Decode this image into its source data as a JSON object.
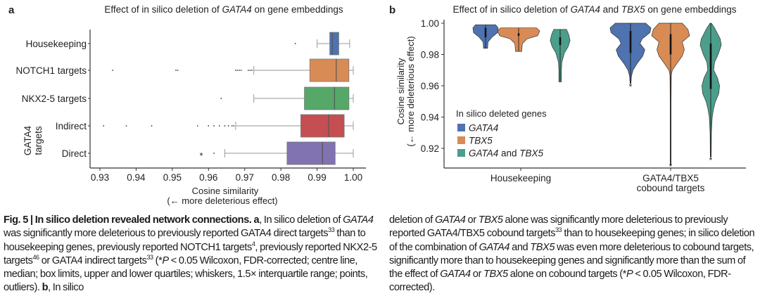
{
  "panel_a": {
    "letter": "a",
    "title_runs": [
      {
        "t": "Effect of in silico deletion of "
      },
      {
        "t": "GATA4",
        "i": true
      },
      {
        "t": " on gene embeddings"
      }
    ],
    "group_label": [
      "GATA4",
      "targets"
    ],
    "xlabel": [
      "Cosine similarity",
      "(← more deleterious effect)"
    ]
  },
  "panel_b": {
    "letter": "b",
    "title_runs": [
      {
        "t": "Effect of in silico deletion of "
      },
      {
        "t": "GATA4",
        "i": true
      },
      {
        "t": " and "
      },
      {
        "t": "TBX5",
        "i": true
      },
      {
        "t": " on gene embeddings"
      }
    ],
    "ylabel": [
      "Cosine similarity",
      "(← more deleterious effect)"
    ],
    "legend_title": "In silico deleted genes"
  },
  "chart_data": [
    {
      "type": "box",
      "orientation": "horizontal",
      "title": "Effect of in silico deletion of GATA4 on gene embeddings",
      "xlabel": "Cosine similarity (← more deleterious effect)",
      "xlim": [
        0.928,
        1.003
      ],
      "xticks": [
        "0.93",
        "0.94",
        "0.95",
        "0.96",
        "0.97",
        "0.98",
        "0.99",
        "1.00"
      ],
      "grid": false,
      "categories": [
        {
          "label": "Housekeeping",
          "color": "#4f72b0",
          "whisker_low": 0.99,
          "q1": 0.9935,
          "median": 0.9942,
          "q3": 0.996,
          "whisker_high": 0.999,
          "outliers": [
            0.984
          ],
          "significant": false
        },
        {
          "label": "NOTCH1 targets",
          "color": "#d98b55",
          "whisker_low": 0.9725,
          "q1": 0.988,
          "median": 0.9953,
          "q3": 0.9988,
          "whisker_high": 1.0,
          "outliers": [
            0.9335,
            0.951,
            0.9515,
            0.9675,
            0.968,
            0.9685,
            0.969,
            0.971,
            0.9715,
            0.972
          ],
          "significant": false
        },
        {
          "label": "NKX2-5 targets",
          "color": "#55a868",
          "whisker_low": 0.9725,
          "q1": 0.9865,
          "median": 0.9948,
          "q3": 0.9988,
          "whisker_high": 1.0,
          "outliers": [
            0.9635
          ],
          "significant": false
        },
        {
          "label": "Indirect",
          "color": "#c44e52",
          "whisker_low": 0.9675,
          "q1": 0.9855,
          "median": 0.9932,
          "q3": 0.9975,
          "whisker_high": 1.0,
          "outliers": [
            0.931,
            0.9373,
            0.9443,
            0.957,
            0.96,
            0.9615,
            0.963,
            0.9645,
            0.9655,
            0.9665,
            0.967
          ],
          "significant": false
        },
        {
          "label": "Direct",
          "color": "#8172b2",
          "whisker_low": 0.9645,
          "q1": 0.9817,
          "median": 0.9915,
          "q3": 0.995,
          "whisker_high": 1.0,
          "outliers": [
            0.9615
          ],
          "significant": true
        }
      ],
      "significance_marker": "*"
    },
    {
      "type": "violin",
      "title": "Effect of in silico deletion of GATA4 and TBX5 on gene embeddings",
      "ylabel": "Cosine similarity (← more deleterious effect)",
      "ylim": [
        0.9085,
        1.0
      ],
      "yticks": [
        "0.92",
        "0.94",
        "0.96",
        "0.98",
        "1.00"
      ],
      "grid": false,
      "legend": {
        "title": "In silico deleted genes",
        "position": "bottom-left",
        "entries": [
          {
            "runs": [
              {
                "t": "GATA4",
                "i": true
              }
            ],
            "color": "#4f72b0"
          },
          {
            "runs": [
              {
                "t": "TBX5",
                "i": true
              }
            ],
            "color": "#d98b55"
          },
          {
            "runs": [
              {
                "t": "GATA4",
                "i": true
              },
              {
                "t": " and "
              },
              {
                "t": "TBX5",
                "i": true
              }
            ],
            "color": "#4c9e8c"
          }
        ]
      },
      "categories": [
        [
          "Housekeeping"
        ],
        [
          "GATA4/TBX5",
          "cobound targets"
        ]
      ],
      "series": [
        {
          "group": 0,
          "color": "#4f72b0",
          "min": 0.984,
          "max": 0.999,
          "q1": 0.991,
          "q3": 0.997,
          "significant": false,
          "density": [
            [
              0.999,
              0.48
            ],
            [
              0.997,
              0.6
            ],
            [
              0.994,
              0.57
            ],
            [
              0.991,
              0.3
            ],
            [
              0.988,
              0.12
            ],
            [
              0.985,
              0.1
            ],
            [
              0.984,
              0.1
            ]
          ]
        },
        {
          "group": 0,
          "color": "#d98b55",
          "min": 0.982,
          "max": 0.997,
          "q1": 0.992,
          "q3": 0.9935,
          "significant": false,
          "density": [
            [
              0.997,
              0.85
            ],
            [
              0.995,
              1.0
            ],
            [
              0.992,
              0.9
            ],
            [
              0.99,
              0.4
            ],
            [
              0.987,
              0.18
            ],
            [
              0.983,
              0.15
            ],
            [
              0.982,
              0.15
            ]
          ]
        },
        {
          "group": 0,
          "color": "#4c9e8c",
          "min": 0.9625,
          "max": 0.996,
          "q1": 0.986,
          "q3": 0.991,
          "significant": false,
          "density": [
            [
              0.996,
              0.3
            ],
            [
              0.993,
              0.4
            ],
            [
              0.989,
              0.47
            ],
            [
              0.985,
              0.38
            ],
            [
              0.981,
              0.2
            ],
            [
              0.975,
              0.08
            ],
            [
              0.97,
              0.06
            ],
            [
              0.965,
              0.06
            ],
            [
              0.9625,
              0.06
            ]
          ]
        },
        {
          "group": 1,
          "color": "#4f72b0",
          "min": 0.9615,
          "max": 1.0,
          "q1": 0.981,
          "q3": 0.995,
          "significant": true,
          "density": [
            [
              1.0,
              0.72
            ],
            [
              0.997,
              0.97
            ],
            [
              0.994,
              0.92
            ],
            [
              0.99,
              0.55
            ],
            [
              0.987,
              0.45
            ],
            [
              0.983,
              0.68
            ],
            [
              0.979,
              0.58
            ],
            [
              0.974,
              0.3
            ],
            [
              0.97,
              0.12
            ],
            [
              0.966,
              0.04
            ],
            [
              0.9615,
              0.02
            ]
          ]
        },
        {
          "group": 1,
          "color": "#d98b55",
          "min": 0.9095,
          "max": 1.0,
          "q1": 0.98,
          "q3": 0.993,
          "significant": true,
          "density": [
            [
              1.0,
              0.55
            ],
            [
              0.996,
              0.82
            ],
            [
              0.992,
              0.9
            ],
            [
              0.988,
              0.55
            ],
            [
              0.983,
              0.65
            ],
            [
              0.979,
              0.55
            ],
            [
              0.974,
              0.28
            ],
            [
              0.97,
              0.08
            ],
            [
              0.967,
              0.03
            ],
            [
              0.95,
              0.02
            ],
            [
              0.9095,
              0.02
            ]
          ]
        },
        {
          "group": 1,
          "color": "#4c9e8c",
          "min": 0.9145,
          "max": 1.0,
          "q1": 0.958,
          "q3": 0.987,
          "significant": true,
          "density": [
            [
              1.0,
              0.03
            ],
            [
              0.997,
              0.18
            ],
            [
              0.99,
              0.45
            ],
            [
              0.986,
              0.5
            ],
            [
              0.98,
              0.35
            ],
            [
              0.975,
              0.18
            ],
            [
              0.97,
              0.14
            ],
            [
              0.965,
              0.32
            ],
            [
              0.96,
              0.42
            ],
            [
              0.955,
              0.38
            ],
            [
              0.95,
              0.22
            ],
            [
              0.945,
              0.13
            ],
            [
              0.94,
              0.07
            ],
            [
              0.93,
              0.03
            ],
            [
              0.9145,
              0.02
            ]
          ]
        }
      ],
      "significance_marker": "*"
    }
  ],
  "caption": {
    "left": [
      {
        "t": "Fig. 5 | In silico deletion revealed network connections. a",
        "b": true
      },
      {
        "t": ", In silico deletion of "
      },
      {
        "t": "GATA4",
        "i": true
      },
      {
        "t": " was significantly more deleterious to previously reported GATA4 direct targets"
      },
      {
        "t": "33",
        "sup": true
      },
      {
        "t": " than to housekeeping genes, previously reported NOTCH1 targets"
      },
      {
        "t": "4",
        "sup": true
      },
      {
        "t": ", previously reported NKX2-5 targets"
      },
      {
        "t": "46",
        "sup": true
      },
      {
        "t": " or GATA4 indirect targets"
      },
      {
        "t": "33",
        "sup": true
      },
      {
        "t": " (*"
      },
      {
        "t": "P",
        "i": true
      },
      {
        "t": " < 0.05 Wilcoxon, FDR-corrected; centre line, median; box limits, upper and lower quartiles; whiskers, 1.5× interquartile range; points, outliers). "
      },
      {
        "t": "b",
        "b": true
      },
      {
        "t": ", In silico"
      }
    ],
    "right": [
      {
        "t": "deletion of "
      },
      {
        "t": "GATA4",
        "i": true
      },
      {
        "t": " or "
      },
      {
        "t": "TBX5",
        "i": true
      },
      {
        "t": " alone was significantly more deleterious to previously reported GATA4/TBX5 cobound targets"
      },
      {
        "t": "33",
        "sup": true
      },
      {
        "t": " than to housekeeping genes; in silico deletion of the combination of "
      },
      {
        "t": "GATA4",
        "i": true
      },
      {
        "t": " and "
      },
      {
        "t": "TBX5",
        "i": true
      },
      {
        "t": " was even more deleterious to cobound targets, significantly more than to housekeeping genes and significantly more than the sum of the effect of "
      },
      {
        "t": "GATA4",
        "i": true
      },
      {
        "t": " or "
      },
      {
        "t": "TBX5",
        "i": true
      },
      {
        "t": " alone on cobound targets (*"
      },
      {
        "t": "P",
        "i": true
      },
      {
        "t": " < 0.05 Wilcoxon, FDR-corrected)."
      }
    ]
  }
}
